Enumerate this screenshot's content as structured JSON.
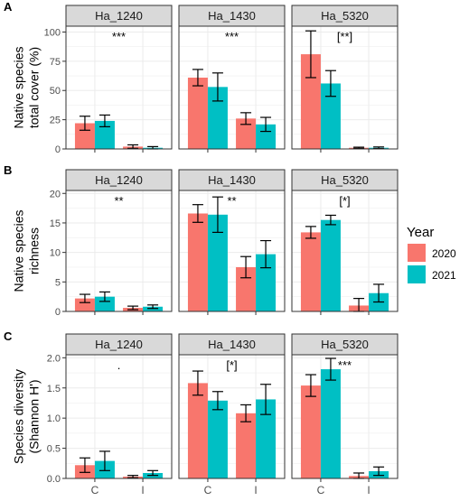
{
  "legend": {
    "title": "Year",
    "items": [
      {
        "label": "2020",
        "color": "#F8766D"
      },
      {
        "label": "2021",
        "color": "#00BFC4"
      }
    ]
  },
  "colors": {
    "strip_fill": "#D9D9D9",
    "strip_border": "#333333",
    "panel_border": "#333333",
    "grid": "#EBEBEB",
    "errorbar": "#000000"
  },
  "chart_data": [
    {
      "type": "bar",
      "panel_label": "A",
      "ylabel": "Native species\ntotal cover (%)",
      "ylim": [
        0,
        105
      ],
      "yticks": [
        0,
        25,
        50,
        75,
        100
      ],
      "categories": [
        "C",
        "I"
      ],
      "facets": [
        {
          "name": "Ha_1240",
          "annotation": "***",
          "series": [
            {
              "name": "2020",
              "values": [
                22,
                2
              ],
              "errors": [
                6,
                1.5
              ]
            },
            {
              "name": "2021",
              "values": [
                24,
                1
              ],
              "errors": [
                5,
                1
              ]
            }
          ]
        },
        {
          "name": "Ha_1430",
          "annotation": "***",
          "series": [
            {
              "name": "2020",
              "values": [
                61,
                26
              ],
              "errors": [
                7,
                5
              ]
            },
            {
              "name": "2021",
              "values": [
                53,
                21
              ],
              "errors": [
                12,
                6
              ]
            }
          ]
        },
        {
          "name": "Ha_5320",
          "annotation": "[**]",
          "series": [
            {
              "name": "2020",
              "values": [
                81,
                1
              ],
              "errors": [
                20,
                0.5
              ]
            },
            {
              "name": "2021",
              "values": [
                56,
                1
              ],
              "errors": [
                11,
                0.7
              ]
            }
          ]
        }
      ]
    },
    {
      "type": "bar",
      "panel_label": "B",
      "ylabel": "Native species\nrichness",
      "ylim": [
        0,
        20.5
      ],
      "yticks": [
        0,
        5,
        10,
        15,
        20
      ],
      "categories": [
        "C",
        "I"
      ],
      "facets": [
        {
          "name": "Ha_1240",
          "annotation": "**",
          "series": [
            {
              "name": "2020",
              "values": [
                2.2,
                0.6
              ],
              "errors": [
                0.7,
                0.3
              ]
            },
            {
              "name": "2021",
              "values": [
                2.5,
                0.8
              ],
              "errors": [
                0.8,
                0.3
              ]
            }
          ]
        },
        {
          "name": "Ha_1430",
          "annotation": "**",
          "series": [
            {
              "name": "2020",
              "values": [
                16.6,
                7.5
              ],
              "errors": [
                1.5,
                1.8
              ]
            },
            {
              "name": "2021",
              "values": [
                16.4,
                9.7
              ],
              "errors": [
                3.0,
                2.3
              ]
            }
          ]
        },
        {
          "name": "Ha_5320",
          "annotation": "[*]",
          "series": [
            {
              "name": "2020",
              "values": [
                13.4,
                1.0
              ],
              "errors": [
                1.0,
                1.2
              ]
            },
            {
              "name": "2021",
              "values": [
                15.5,
                3.1
              ],
              "errors": [
                0.8,
                1.5
              ]
            }
          ]
        }
      ]
    },
    {
      "type": "bar",
      "panel_label": "C",
      "ylabel": "Species diversity\n(Shannon H')",
      "ylim": [
        0,
        2.05
      ],
      "yticks": [
        0,
        0.5,
        1.0,
        1.5,
        2.0
      ],
      "ytick_labels": [
        "0.0",
        "0.5",
        "1.0",
        "1.5",
        "2.0"
      ],
      "categories": [
        "C",
        "I"
      ],
      "facets": [
        {
          "name": "Ha_1240",
          "annotation": ".",
          "series": [
            {
              "name": "2020",
              "values": [
                0.22,
                0.03
              ],
              "errors": [
                0.12,
                0.02
              ]
            },
            {
              "name": "2021",
              "values": [
                0.29,
                0.09
              ],
              "errors": [
                0.16,
                0.04
              ]
            }
          ]
        },
        {
          "name": "Ha_1430",
          "annotation": "[*]",
          "series": [
            {
              "name": "2020",
              "values": [
                1.58,
                1.08
              ],
              "errors": [
                0.2,
                0.14
              ]
            },
            {
              "name": "2021",
              "values": [
                1.29,
                1.31
              ],
              "errors": [
                0.15,
                0.25
              ]
            }
          ]
        },
        {
          "name": "Ha_5320",
          "annotation": "***",
          "series": [
            {
              "name": "2020",
              "values": [
                1.54,
                0.04
              ],
              "errors": [
                0.18,
                0.05
              ]
            },
            {
              "name": "2021",
              "values": [
                1.81,
                0.12
              ],
              "errors": [
                0.18,
                0.07
              ]
            }
          ]
        }
      ]
    }
  ]
}
